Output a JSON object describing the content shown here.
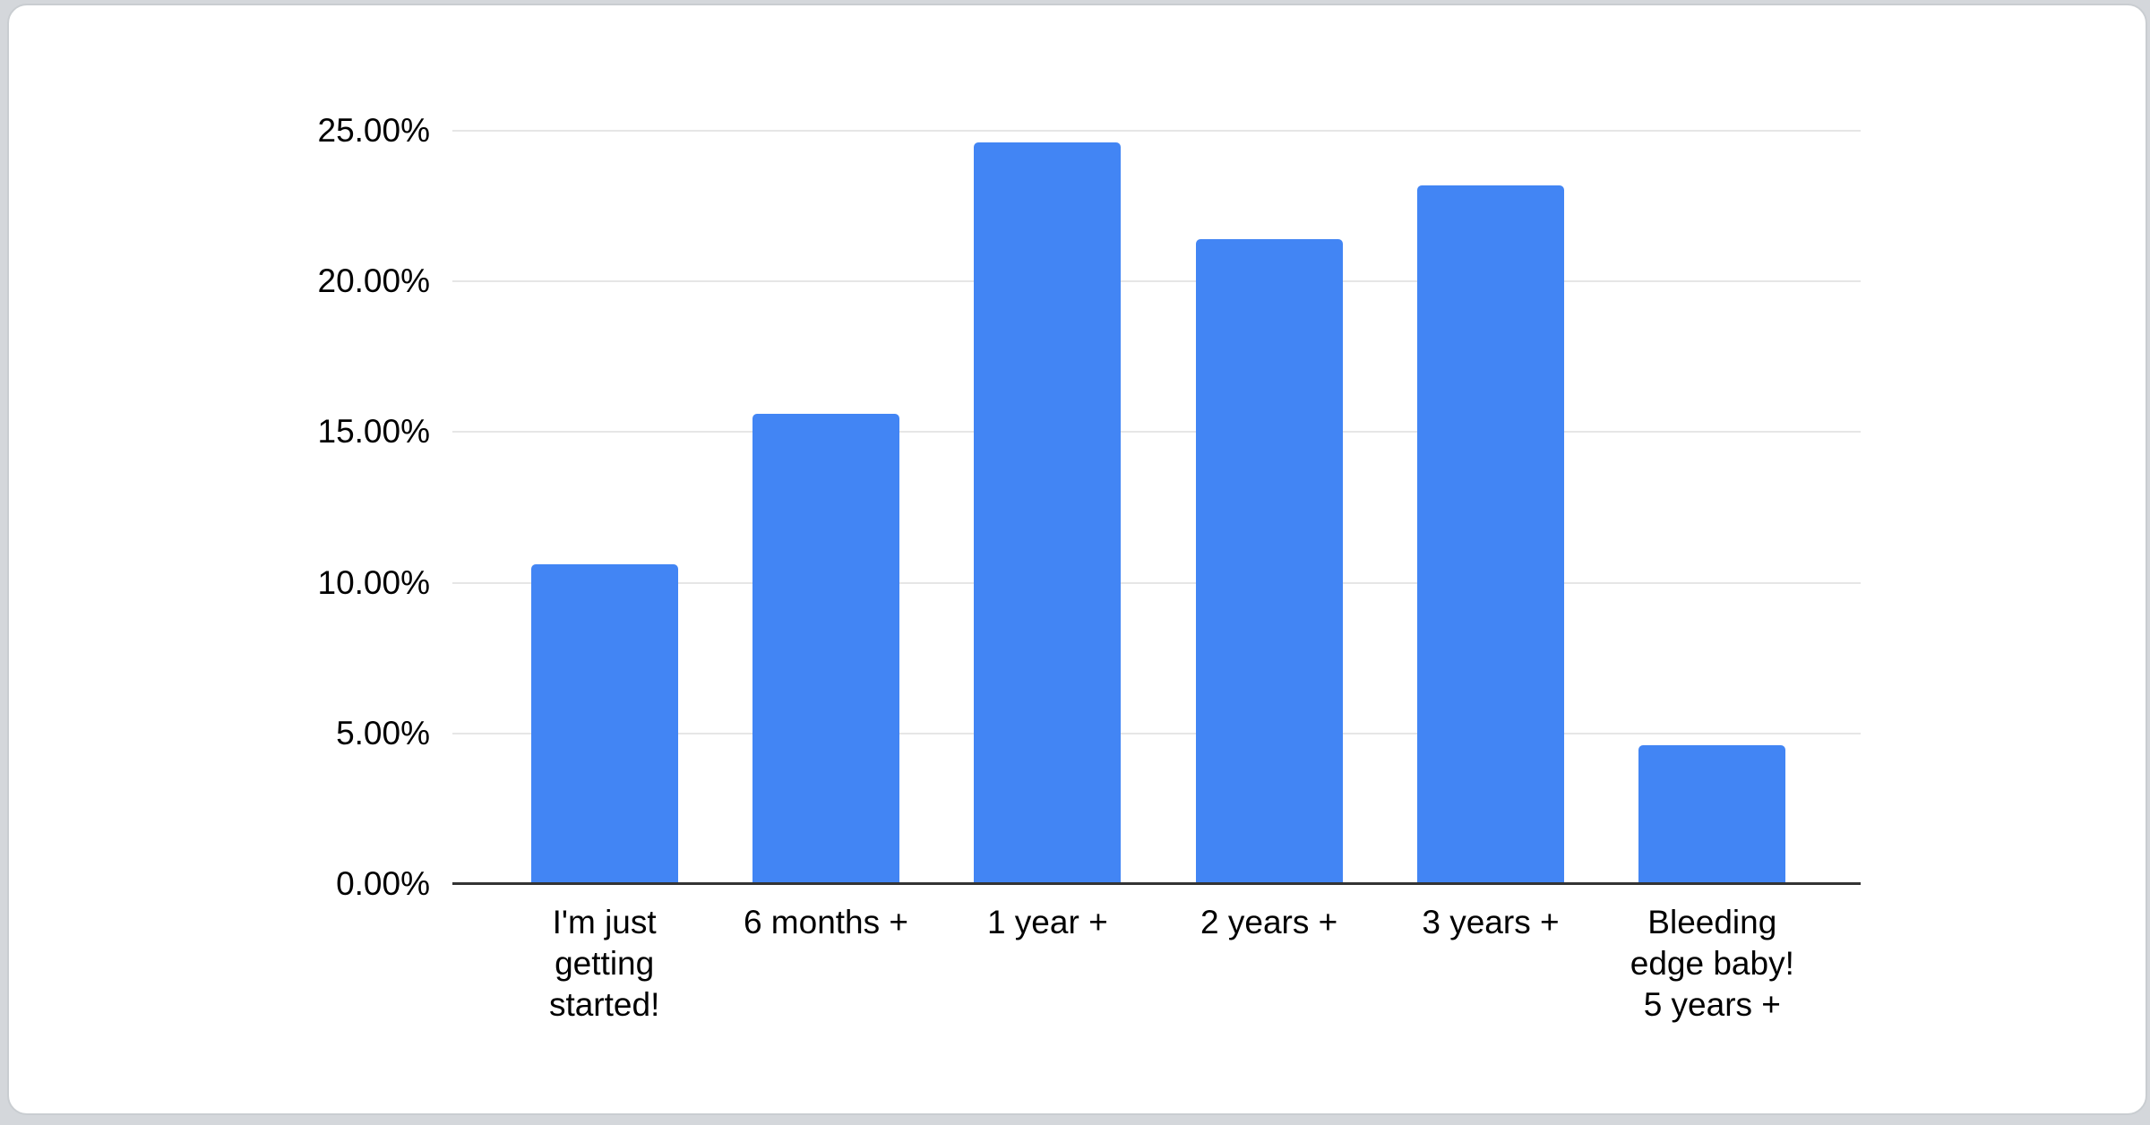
{
  "page": {
    "background_color": "#d4d7db",
    "card_background": "#ffffff",
    "card_border_color": "#c9cdd1"
  },
  "chart_data": {
    "type": "bar",
    "categories": [
      "I'm just\ngetting\nstarted!",
      "6 months +",
      "1 year +",
      "2 years +",
      "3 years +",
      "Bleeding\nedge baby!\n5 years +"
    ],
    "values": [
      10.6,
      15.6,
      24.6,
      21.4,
      23.2,
      4.6
    ],
    "value_unit": "%",
    "title": "",
    "xlabel": "",
    "ylabel": "",
    "y_ticks": [
      "0.00%",
      "5.00%",
      "10.00%",
      "15.00%",
      "20.00%",
      "25.00%"
    ],
    "ylim": [
      0,
      25
    ],
    "grid": true,
    "legend": "none",
    "bar_color": "#4285f4",
    "gridline_color": "#e6e6e6",
    "axis_line_color": "#333333",
    "label_color": "#000000"
  }
}
